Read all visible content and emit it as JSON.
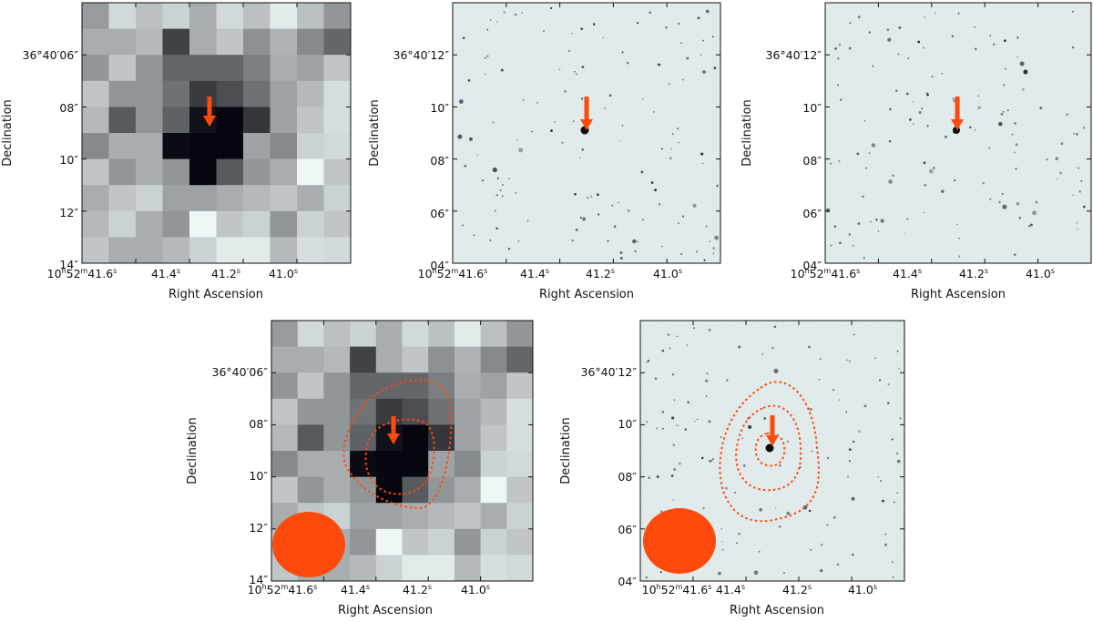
{
  "figure": {
    "colors": {
      "accent": "#ff4a0d",
      "background": "#ffffff",
      "frame": "#111111"
    },
    "panels": [
      {
        "id": "p1",
        "kind": "pixel",
        "xlabel": "Right Ascension",
        "ylabel": "Declination",
        "ra_ticks": [
          {
            "main": "10",
            "s1": "h",
            "mid": "52",
            "s2": "m",
            "tail": "41.6",
            "s3": "s"
          },
          {
            "main": "41.4",
            "s1": "s"
          },
          {
            "main": "41.2",
            "s1": "s"
          },
          {
            "main": "41.0",
            "s1": "s"
          }
        ],
        "dec_ticks": [
          "36°40′06″",
          "08″",
          "10″",
          "12″",
          "14″"
        ],
        "pixel_grid": {
          "rows": 10,
          "cols": 10,
          "values": [
            [
              0.38,
              0.12,
              0.22,
              0.15,
              0.3,
              0.12,
              0.22,
              0.05,
              0.22,
              0.4
            ],
            [
              0.3,
              0.3,
              0.25,
              0.75,
              0.3,
              0.2,
              0.42,
              0.28,
              0.45,
              0.6
            ],
            [
              0.4,
              0.2,
              0.4,
              0.6,
              0.6,
              0.6,
              0.5,
              0.3,
              0.35,
              0.2
            ],
            [
              0.2,
              0.4,
              0.4,
              0.55,
              0.78,
              0.7,
              0.55,
              0.35,
              0.25,
              0.1
            ],
            [
              0.25,
              0.65,
              0.4,
              0.62,
              0.95,
              1.0,
              0.8,
              0.35,
              0.2,
              0.1
            ],
            [
              0.45,
              0.3,
              0.3,
              0.98,
              1.0,
              1.0,
              0.35,
              0.45,
              0.15,
              0.12
            ],
            [
              0.2,
              0.4,
              0.3,
              0.4,
              1.0,
              0.65,
              0.4,
              0.3,
              0.0,
              0.2
            ],
            [
              0.3,
              0.2,
              0.15,
              0.35,
              0.35,
              0.3,
              0.25,
              0.2,
              0.3,
              0.15
            ],
            [
              0.25,
              0.15,
              0.3,
              0.4,
              0.0,
              0.2,
              0.15,
              0.4,
              0.15,
              0.2
            ],
            [
              0.2,
              0.3,
              0.3,
              0.25,
              0.15,
              0.05,
              0.05,
              0.25,
              0.1,
              0.12
            ]
          ]
        },
        "arrow": {
          "ra_frac": 0.48,
          "dec_frac": 0.44
        }
      },
      {
        "id": "p2",
        "kind": "star",
        "xlabel": "Right Ascension",
        "ylabel": "Declination",
        "ra_ticks": [
          {
            "main": "10",
            "s1": "h",
            "mid": "52",
            "s2": "m",
            "tail": "41.6",
            "s3": "s"
          },
          {
            "main": "41.4",
            "s1": "s"
          },
          {
            "main": "41.2",
            "s1": "s"
          },
          {
            "main": "41.0",
            "s1": "s"
          }
        ],
        "dec_ticks": [
          "36°40′12″",
          "10″",
          "08″",
          "06″",
          "04″"
        ],
        "source": {
          "ra_frac": 0.49,
          "dec_frac": 0.47
        },
        "seed": 7
      },
      {
        "id": "p3",
        "kind": "star",
        "xlabel": "Right Ascension",
        "ylabel": "Declination",
        "ra_ticks": [
          {
            "main": "10",
            "s1": "h",
            "mid": "52",
            "s2": "m",
            "tail": "41.6",
            "s3": "s"
          },
          {
            "main": "41.4",
            "s1": "s"
          },
          {
            "main": "41.2",
            "s1": "s"
          },
          {
            "main": "41.0",
            "s1": "s"
          }
        ],
        "dec_ticks": [
          "36°40′12″",
          "10″",
          "08″",
          "06″",
          "04″"
        ],
        "source": {
          "ra_frac": 0.49,
          "dec_frac": 0.47
        },
        "seed": 19
      },
      {
        "id": "p4",
        "kind": "pixel-contour",
        "xlabel": "Right Ascension",
        "ylabel": "Declination",
        "ra_ticks": [
          {
            "main": "10",
            "s1": "h",
            "mid": "52",
            "s2": "m",
            "tail": "41.6",
            "s3": "s"
          },
          {
            "main": "41.4",
            "s1": "s"
          },
          {
            "main": "41.2",
            "s1": "s"
          },
          {
            "main": "41.0",
            "s1": "s"
          }
        ],
        "dec_ticks": [
          "36°40′06″",
          "08″",
          "10″",
          "12″",
          "14″"
        ],
        "beam": {
          "ra_frac": 0.17,
          "dec_frac": 0.85
        },
        "arrow": {
          "ra_frac": 0.49,
          "dec_frac": 0.44
        }
      },
      {
        "id": "p5",
        "kind": "star-contour",
        "xlabel": "Right Ascension",
        "ylabel": "Declination",
        "ra_ticks": [
          {
            "main": "10",
            "s1": "h",
            "mid": "52",
            "s2": "m",
            "tail": "41.6",
            "s3": "s"
          },
          {
            "main": "41.4",
            "s1": "s"
          },
          {
            "main": "41.2",
            "s1": "s"
          },
          {
            "main": "41.0",
            "s1": "s"
          }
        ],
        "dec_ticks": [
          "36°40′12″",
          "10″",
          "08″",
          "06″",
          "04″"
        ],
        "source": {
          "ra_frac": 0.49,
          "dec_frac": 0.49
        },
        "beam": {
          "ra_frac": 0.15,
          "dec_frac": 0.83
        },
        "seed": 31
      }
    ]
  }
}
